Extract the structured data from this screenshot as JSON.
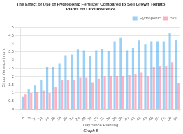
{
  "chart_data": {
    "type": "bar",
    "title": "The Effect of Use of Hydroponic Fertilizer Compared to Soil Grown Tomato\nPlants on Circumference",
    "xlabel": "Day Since Planting",
    "ylabel": "Circumference in cm",
    "caption": "Graph 5",
    "categories": [
      "6",
      "8",
      "10",
      "12",
      "14",
      "16",
      "18",
      "20",
      "22",
      "24",
      "26",
      "28",
      "30",
      "32",
      "34",
      "36",
      "38",
      "40",
      "42",
      "44",
      "46",
      "48",
      "50",
      "52",
      "56",
      "58"
    ],
    "series": [
      {
        "name": "Hydroponic",
        "values": [
          0.8,
          1.25,
          1.45,
          1.8,
          2.6,
          2.6,
          2.8,
          3.3,
          3.35,
          3.65,
          3.6,
          3.25,
          3.6,
          3.7,
          3.55,
          4.15,
          4.35,
          3.6,
          3.75,
          4.2,
          3.95,
          4.15,
          4.15,
          4.15,
          4.65,
          4.25
        ]
      },
      {
        "name": "Soil",
        "values": [
          0.9,
          1.0,
          1.05,
          1.15,
          1.0,
          1.35,
          1.8,
          1.8,
          1.8,
          1.95,
          1.95,
          1.65,
          1.85,
          2.0,
          2.05,
          2.05,
          2.05,
          2.1,
          2.15,
          2.25,
          2.05,
          2.6,
          2.65,
          2.65,
          2.85,
          1.6
        ]
      }
    ],
    "ylim": [
      0,
      5
    ],
    "yticks": [
      0,
      0.5,
      1,
      1.5,
      2,
      2.5,
      3,
      3.5,
      4,
      4.5,
      5
    ],
    "grid": true,
    "legend": "upper right"
  }
}
